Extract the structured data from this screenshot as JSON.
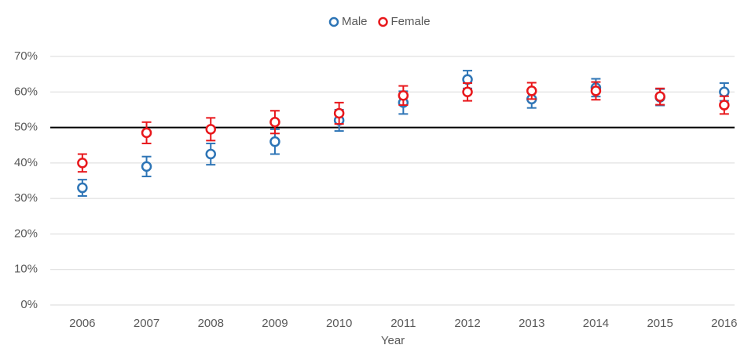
{
  "chart_data": {
    "type": "errorbar",
    "x_label": "Year",
    "categories": [
      "2006",
      "2007",
      "2008",
      "2009",
      "2010",
      "2011",
      "2012",
      "2013",
      "2014",
      "2015",
      "2016"
    ],
    "series": [
      {
        "name": "Male",
        "color": "#2e75b6",
        "values": [
          33,
          39,
          42.5,
          46,
          52,
          57,
          63.5,
          58,
          61.2,
          58.5,
          60
        ],
        "errors": [
          2.3,
          2.8,
          3,
          3.5,
          3,
          3.2,
          2.5,
          2.5,
          2.5,
          2.3,
          2.5
        ]
      },
      {
        "name": "Female",
        "color": "#e8171b",
        "values": [
          40,
          48.5,
          49.5,
          51.5,
          54,
          59,
          60,
          60.3,
          60.3,
          58.7,
          56.3
        ],
        "errors": [
          2.5,
          3,
          3.2,
          3.2,
          3,
          2.7,
          2.5,
          2.3,
          2.5,
          2.3,
          2.5
        ]
      }
    ],
    "ylim": [
      0,
      70
    ],
    "yticks": [
      {
        "value": 0,
        "label": "0%"
      },
      {
        "value": 10,
        "label": "10%"
      },
      {
        "value": 20,
        "label": "20%"
      },
      {
        "value": 30,
        "label": "30%"
      },
      {
        "value": 40,
        "label": "40%"
      },
      {
        "value": 50,
        "label": "50%"
      },
      {
        "value": 60,
        "label": "60%"
      },
      {
        "value": 70,
        "label": "70%"
      }
    ],
    "reference_line": 50,
    "grid": true
  }
}
